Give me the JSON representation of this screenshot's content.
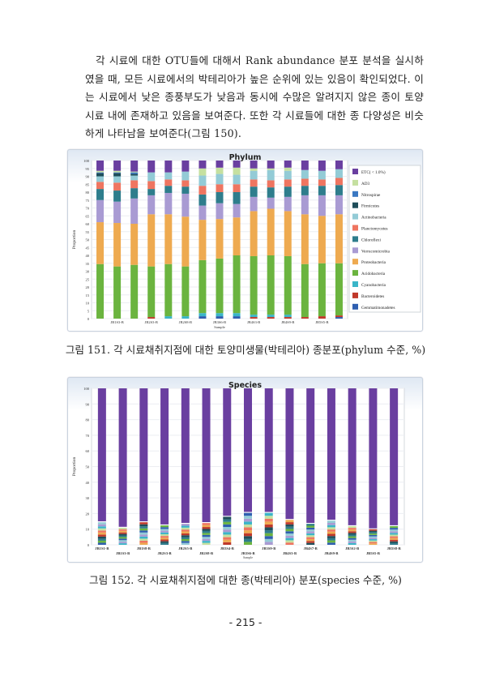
{
  "body_text": "각 시료에 대한 OTU들에 대해서 Rank abundance 분포 분석을 실시하였을 때, 모든 시료에서의 박테리아가 높은 순위에 있는 있음이 확인되었다. 이는 시료에서 낮은 종풍부도가 낮음과 동시에 수많은 알려지지 않은 종이 토양 시료 내에 존재하고 있음을 보여준다. 또한 각 시료들에 대한 종 다양성은 비슷하게 나타남을 보여준다(그림 150).",
  "figure151_caption": "그림 151. 각 시료채취지점에 대한 토양미생물(박테리아) 종분포(phylum 수준, %)",
  "figure152_caption": "그림 152. 각 시료채취지점에 대한 종(박테리아) 분포(species 수준, %)",
  "page_number": "- 215 -",
  "chart_data": [
    {
      "type": "bar",
      "stacked": true,
      "title": "Phylum",
      "xlabel": "Sample",
      "ylabel": "Proportion",
      "ylim": [
        0,
        100
      ],
      "yticks": [
        0,
        5,
        10,
        15,
        20,
        25,
        30,
        35,
        40,
        45,
        50,
        55,
        60,
        65,
        70,
        75,
        80,
        85,
        90,
        95,
        100
      ],
      "grid": true,
      "legend_position": "right",
      "categories": [
        "",
        "JB1S3-B",
        "",
        "JB2S3-B",
        "",
        "JB2S8-B",
        "",
        "JB3S6-B",
        "",
        "JB4S3-B",
        "",
        "JB4S9-B",
        "",
        "JB5S5-B",
        ""
      ],
      "series": [
        {
          "name": "Gemmatimonadetes",
          "color": "#2f5fb0",
          "values": [
            0,
            0,
            0,
            0,
            0,
            0,
            1.5,
            1.5,
            1.5,
            0,
            0,
            0,
            0,
            0,
            1
          ]
        },
        {
          "name": "Bacteroidetes",
          "color": "#c0392b",
          "values": [
            0,
            0,
            0,
            1,
            0,
            0,
            0,
            0,
            0,
            1,
            1,
            1,
            1,
            1.5,
            1
          ]
        },
        {
          "name": "Cyanobacteria",
          "color": "#3ab5c8",
          "values": [
            0,
            0,
            0,
            0,
            1.5,
            1.5,
            2,
            2,
            2,
            1.5,
            1.5,
            1.5,
            0,
            0,
            0
          ]
        },
        {
          "name": "Acidobacteria",
          "color": "#6bb43f",
          "values": [
            34.5,
            33,
            34,
            32,
            33,
            31.5,
            33.5,
            34.5,
            36.5,
            37,
            37.5,
            37,
            33.5,
            33.5,
            33
          ]
        },
        {
          "name": "Proteobacteria",
          "color": "#eeaa50",
          "values": [
            26.5,
            27.5,
            26,
            33,
            31.5,
            31.5,
            25.5,
            25,
            24,
            28.5,
            29.5,
            28.5,
            31.5,
            30,
            31
          ]
        },
        {
          "name": "Verrucomicrobia",
          "color": "#a99bd3",
          "values": [
            14,
            13.5,
            16,
            12,
            13.5,
            14.5,
            9,
            10,
            8.5,
            9,
            7,
            9,
            12,
            13,
            12
          ]
        },
        {
          "name": "Chloroflexi",
          "color": "#2e7d8c",
          "values": [
            7,
            7,
            6.5,
            4,
            4.5,
            4.5,
            7,
            7,
            7.5,
            6.5,
            6.5,
            6.5,
            6,
            6,
            6.5
          ]
        },
        {
          "name": "Planctomycetes",
          "color": "#ef7560",
          "values": [
            4.5,
            5,
            5,
            5,
            4,
            4,
            5.5,
            5,
            5,
            4.5,
            4.5,
            4.5,
            4.5,
            4,
            4.5
          ]
        },
        {
          "name": "Actinobacteria",
          "color": "#93cbd6",
          "values": [
            3.5,
            4,
            3,
            5.5,
            4.5,
            5.5,
            6.5,
            6.5,
            6,
            5.5,
            6.5,
            5.5,
            5.5,
            5.5,
            5.5
          ]
        },
        {
          "name": "Firmicutes",
          "color": "#1f4e5a",
          "values": [
            2,
            2,
            1,
            0,
            0,
            0,
            0,
            0,
            0,
            0,
            0,
            0,
            0,
            0,
            0
          ]
        },
        {
          "name": "Nitrospirae",
          "color": "#3a78c2",
          "values": [
            0.5,
            0.5,
            1,
            0,
            0,
            0,
            0,
            0,
            0,
            0,
            0,
            0,
            0,
            0,
            0
          ]
        },
        {
          "name": "AD3",
          "color": "#c5e0a0",
          "values": [
            1,
            1,
            0.5,
            0,
            0,
            0,
            4.5,
            4,
            4.5,
            1.5,
            1,
            2,
            0,
            0,
            0
          ]
        },
        {
          "name": "ETC( < 1.0%)",
          "color": "#6a3fa0",
          "values": [
            6.5,
            6.5,
            7,
            7.5,
            7.5,
            7,
            5,
            4.5,
            4.5,
            5,
            5,
            4.5,
            6,
            6.5,
            5.5
          ]
        }
      ]
    },
    {
      "type": "bar",
      "stacked": true,
      "title": "Species",
      "xlabel": "Sample",
      "ylabel": "Proportion",
      "ylim": [
        0,
        100
      ],
      "yticks": [
        0,
        10,
        20,
        30,
        40,
        50,
        60,
        70,
        80,
        90,
        100
      ],
      "grid": true,
      "categories": [
        "JB1S1-B",
        "JB1S3-B",
        "JB1S8-B",
        "JB2S3-B",
        "JB2S5-B",
        "JB2S8-B",
        "JB3S4-B",
        "JB3S6-B",
        "JB3S9-B",
        "JB4S3-B",
        "JB4S7-B",
        "JB4S9-B",
        "JB5S2-B",
        "JB5S5-B",
        "JB5S8-B"
      ],
      "minor_species_total": [
        15,
        11.5,
        15,
        13,
        14,
        14.5,
        18.5,
        21,
        21,
        16.5,
        14,
        16,
        12.5,
        10.5,
        12.5
      ],
      "dominant_color": "#6a3fa0",
      "minor_palette": [
        "#2f5fb0",
        "#c0392b",
        "#3ab5c8",
        "#6bb43f",
        "#eeaa50",
        "#a99bd3",
        "#2e7d8c",
        "#ef7560",
        "#93cbd6",
        "#1f4e5a",
        "#c5e0a0"
      ]
    }
  ]
}
